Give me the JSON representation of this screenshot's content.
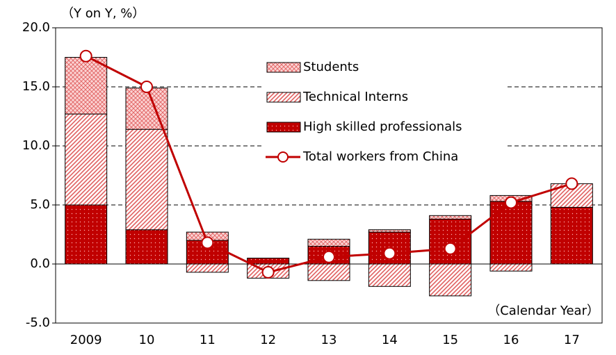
{
  "chart_data": {
    "type": "bar",
    "y_label": "（Y on Y, %）",
    "x_label": "（Calendar Year）",
    "categories": [
      "2009",
      "10",
      "11",
      "12",
      "13",
      "14",
      "15",
      "16",
      "17"
    ],
    "series": [
      {
        "name": "High skilled professionals",
        "color": "#c00000",
        "pattern": "dots",
        "values": [
          5.0,
          2.9,
          2.0,
          0.5,
          1.5,
          2.7,
          3.8,
          5.3,
          4.8
        ]
      },
      {
        "name": "Technical Interns",
        "color": "#e06060",
        "pattern": "diagonal",
        "values": [
          7.7,
          8.5,
          -0.7,
          -1.2,
          -1.4,
          -1.9,
          -2.7,
          -0.6,
          2.0
        ]
      },
      {
        "name": "Students",
        "color": "#e06060",
        "pattern": "crosshatch",
        "values": [
          4.8,
          3.5,
          0.7,
          0,
          0.6,
          0.2,
          0.3,
          0.5,
          0
        ]
      },
      {
        "name": "Total workers from China",
        "color": "#c00000",
        "type": "line",
        "values": [
          17.6,
          15.0,
          1.8,
          -0.7,
          0.6,
          0.9,
          1.3,
          5.2,
          6.8
        ]
      }
    ],
    "ylim": [
      -5,
      20
    ],
    "yticks": [
      {
        "value": -5,
        "label": "-5.0"
      },
      {
        "value": 0,
        "label": "0.0"
      },
      {
        "value": 5,
        "label": "5.0"
      },
      {
        "value": 10,
        "label": "10.0"
      },
      {
        "value": 15,
        "label": "15.0"
      },
      {
        "value": 20,
        "label": "20.0"
      }
    ],
    "grid": true,
    "legend": "top"
  }
}
